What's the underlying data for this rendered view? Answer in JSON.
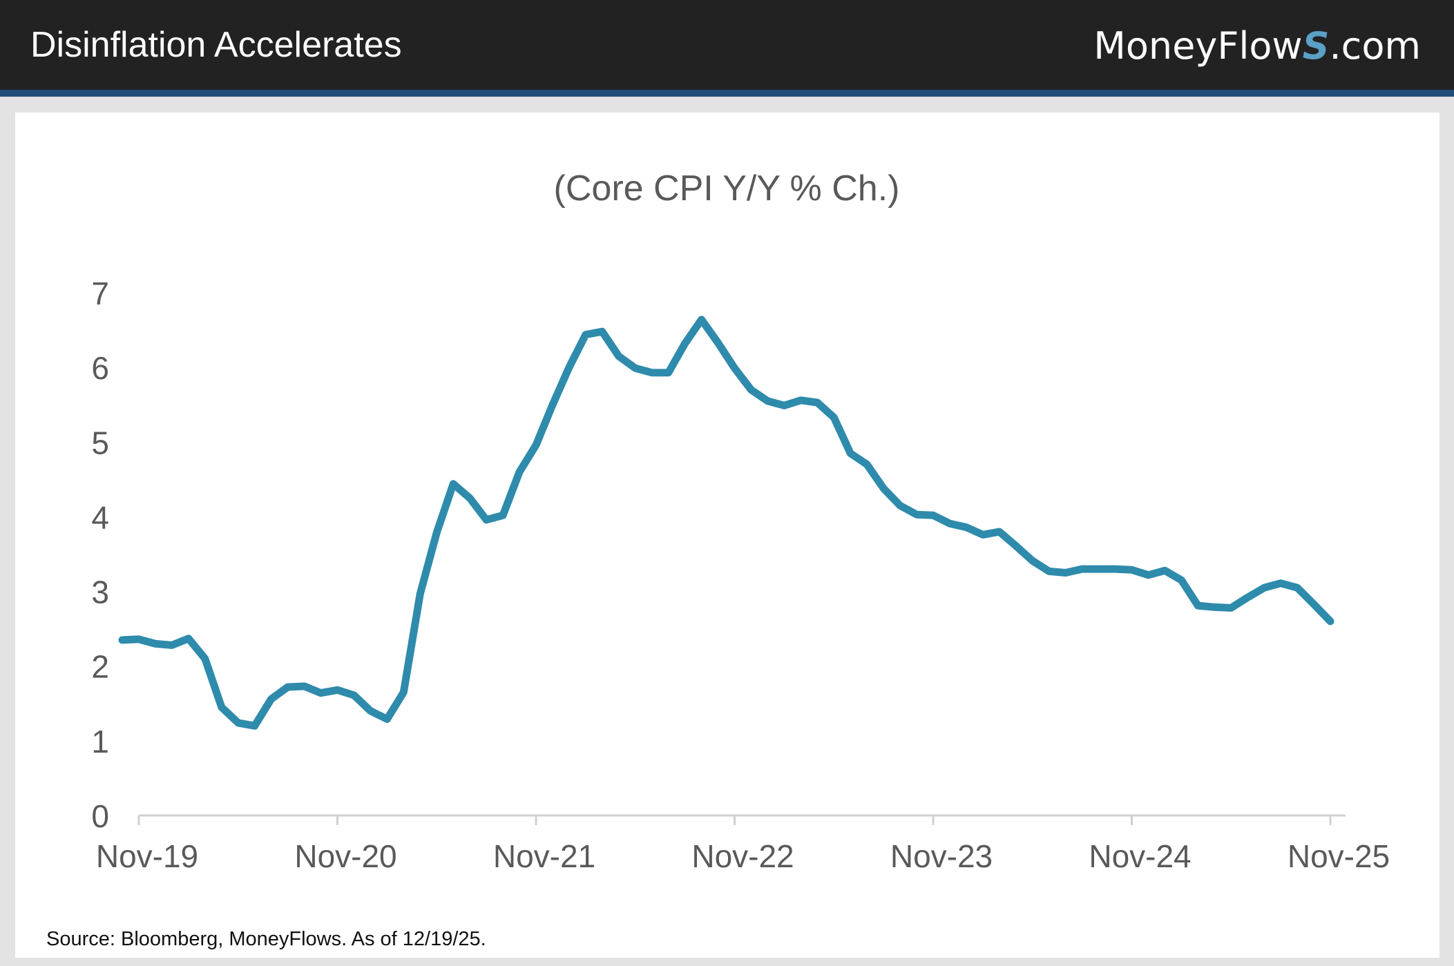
{
  "header": {
    "title": "Disinflation Accelerates",
    "brand_prefix": "MoneyFlow",
    "brand_mark": "S",
    "brand_suffix": ".com"
  },
  "footer": {
    "source": "Source: Bloomberg, MoneyFlows. As of 12/19/25."
  },
  "colors": {
    "line": "#2e8bab",
    "header_bg": "#222222",
    "header_rule": "#1f4e79"
  },
  "chart_data": {
    "type": "line",
    "title": "(Core CPI Y/Y % Ch.)",
    "xlabel": "",
    "ylabel": "",
    "ylim": [
      0,
      7
    ],
    "yticks": [
      "0",
      "1",
      "2",
      "3",
      "4",
      "5",
      "6",
      "7"
    ],
    "xticks": [
      "Nov-19",
      "Nov-20",
      "Nov-21",
      "Nov-22",
      "Nov-23",
      "Nov-24",
      "Nov-25"
    ],
    "grid": false,
    "legend": "none",
    "x_start": "Nov-19",
    "x_end": "Nov-25",
    "series": [
      {
        "values": [
          2.35,
          2.36,
          2.3,
          2.28,
          2.37,
          2.1,
          1.45,
          1.24,
          1.2,
          1.56,
          1.72,
          1.73,
          1.64,
          1.68,
          1.61,
          1.4,
          1.29,
          1.65,
          2.97,
          3.79,
          4.44,
          4.25,
          3.96,
          4.02,
          4.6,
          4.96,
          5.5,
          6.0,
          6.44,
          6.48,
          6.15,
          5.99,
          5.93,
          5.93,
          6.32,
          6.64,
          6.33,
          5.99,
          5.7,
          5.55,
          5.49,
          5.56,
          5.53,
          5.33,
          4.85,
          4.7,
          4.38,
          4.15,
          4.03,
          4.02,
          3.91,
          3.86,
          3.76,
          3.8,
          3.61,
          3.41,
          3.27,
          3.25,
          3.3,
          3.3,
          3.3,
          3.29,
          3.22,
          3.28,
          3.15,
          2.81,
          2.79,
          2.78,
          2.92,
          3.05,
          3.11,
          3.05,
          2.83,
          2.6
        ]
      }
    ]
  }
}
